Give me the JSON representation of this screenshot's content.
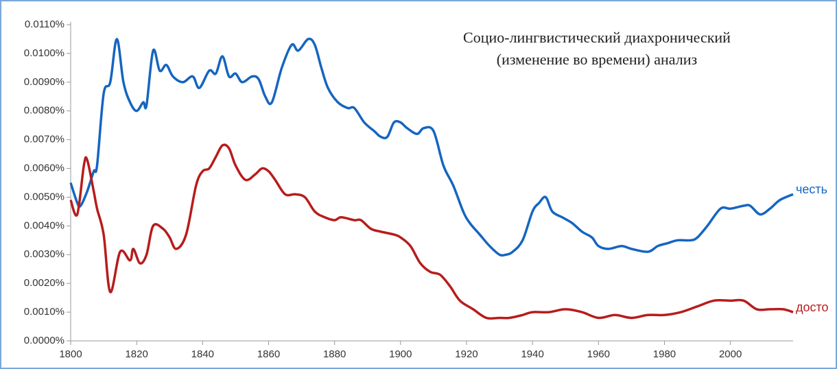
{
  "chart_data": {
    "type": "line",
    "annotation": [
      "Социо-лингвистический диахронический",
      "(изменение во времени) анализ"
    ],
    "xlim": [
      1800,
      2019
    ],
    "xticks": [
      1800,
      1820,
      1840,
      1860,
      1880,
      1900,
      1920,
      1940,
      1960,
      1980,
      2000
    ],
    "ylim": [
      0,
      0.011
    ],
    "yticks": [
      {
        "value": 0,
        "label": "0.0000%"
      },
      {
        "value": 0.001,
        "label": "0.0010%"
      },
      {
        "value": 0.002,
        "label": "0.0020%"
      },
      {
        "value": 0.003,
        "label": "0.0030%"
      },
      {
        "value": 0.004,
        "label": "0.0040%"
      },
      {
        "value": 0.005,
        "label": "0.0050%"
      },
      {
        "value": 0.006,
        "label": "0.0060%"
      },
      {
        "value": 0.007,
        "label": "0.0070%"
      },
      {
        "value": 0.008,
        "label": "0.0080%"
      },
      {
        "value": 0.009,
        "label": "0.0090%"
      },
      {
        "value": 0.01,
        "label": "0.0100%"
      },
      {
        "value": 0.011,
        "label": "0.0110%"
      }
    ],
    "grid": false,
    "series": [
      {
        "name": "честь",
        "color": "#1565c0",
        "x": [
          1800,
          1802,
          1803,
          1805,
          1807,
          1808,
          1810,
          1812,
          1814,
          1816,
          1818,
          1820,
          1822,
          1823,
          1825,
          1827,
          1829,
          1831,
          1834,
          1837,
          1839,
          1842,
          1844,
          1846,
          1848,
          1850,
          1852,
          1855,
          1857,
          1859,
          1861,
          1864,
          1867,
          1869,
          1872,
          1874,
          1876,
          1878,
          1881,
          1884,
          1886,
          1889,
          1892,
          1894,
          1896,
          1898,
          1900,
          1902,
          1905,
          1907,
          1910,
          1913,
          1916,
          1919,
          1921,
          1924,
          1927,
          1930,
          1932,
          1934,
          1937,
          1940,
          1942,
          1944,
          1946,
          1949,
          1952,
          1955,
          1958,
          1960,
          1963,
          1967,
          1970,
          1975,
          1978,
          1981,
          1984,
          1988,
          1990,
          1993,
          1997,
          2000,
          2004,
          2006,
          2009,
          2012,
          2015,
          2019
        ],
        "values": [
          0.0055,
          0.0048,
          0.0047,
          0.0052,
          0.0059,
          0.0061,
          0.0086,
          0.009,
          0.0105,
          0.009,
          0.0083,
          0.008,
          0.0083,
          0.0082,
          0.0101,
          0.0094,
          0.0096,
          0.0092,
          0.009,
          0.0092,
          0.0088,
          0.0094,
          0.0093,
          0.0099,
          0.0092,
          0.0093,
          0.009,
          0.0092,
          0.0091,
          0.0085,
          0.0083,
          0.0095,
          0.0103,
          0.0101,
          0.0105,
          0.0103,
          0.0095,
          0.0088,
          0.0083,
          0.0081,
          0.0081,
          0.0076,
          0.0073,
          0.0071,
          0.0071,
          0.0076,
          0.0076,
          0.0074,
          0.0072,
          0.0074,
          0.0073,
          0.0061,
          0.0054,
          0.0045,
          0.0041,
          0.0037,
          0.0033,
          0.003,
          0.003,
          0.0031,
          0.0035,
          0.0045,
          0.0048,
          0.005,
          0.0045,
          0.0043,
          0.0041,
          0.0038,
          0.0036,
          0.0033,
          0.0032,
          0.0033,
          0.0032,
          0.0031,
          0.0033,
          0.0034,
          0.0035,
          0.0035,
          0.0036,
          0.004,
          0.0046,
          0.0046,
          0.0047,
          0.0047,
          0.0044,
          0.0046,
          0.0049,
          0.0051
        ]
      },
      {
        "name": "досто",
        "color": "#b71c1c",
        "x": [
          1800,
          1802,
          1804,
          1805,
          1807,
          1808,
          1810,
          1812,
          1815,
          1818,
          1819,
          1821,
          1823,
          1825,
          1828,
          1830,
          1832,
          1835,
          1838,
          1840,
          1842,
          1844,
          1846,
          1848,
          1850,
          1853,
          1856,
          1858,
          1860,
          1862,
          1865,
          1868,
          1871,
          1874,
          1877,
          1880,
          1882,
          1886,
          1888,
          1891,
          1894,
          1898,
          1900,
          1903,
          1906,
          1909,
          1912,
          1915,
          1918,
          1922,
          1926,
          1930,
          1933,
          1937,
          1940,
          1945,
          1950,
          1955,
          1960,
          1965,
          1970,
          1975,
          1980,
          1985,
          1990,
          1995,
          2000,
          2004,
          2008,
          2012,
          2016,
          2019
        ],
        "values": [
          0.0049,
          0.0044,
          0.0061,
          0.0063,
          0.0052,
          0.0046,
          0.0037,
          0.0017,
          0.0031,
          0.0028,
          0.0032,
          0.0027,
          0.003,
          0.004,
          0.0039,
          0.0036,
          0.0032,
          0.0037,
          0.0054,
          0.0059,
          0.006,
          0.0064,
          0.0068,
          0.0067,
          0.0061,
          0.0056,
          0.0058,
          0.006,
          0.0059,
          0.0056,
          0.0051,
          0.0051,
          0.005,
          0.0045,
          0.0043,
          0.0042,
          0.0043,
          0.0042,
          0.0042,
          0.0039,
          0.0038,
          0.0037,
          0.0036,
          0.0033,
          0.0027,
          0.0024,
          0.0023,
          0.0019,
          0.0014,
          0.0011,
          0.0008,
          0.0008,
          0.0008,
          0.0009,
          0.001,
          0.001,
          0.0011,
          0.001,
          0.0008,
          0.0009,
          0.0008,
          0.0009,
          0.0009,
          0.001,
          0.0012,
          0.0014,
          0.0014,
          0.0014,
          0.0011,
          0.0011,
          0.0011,
          0.001
        ]
      }
    ]
  }
}
